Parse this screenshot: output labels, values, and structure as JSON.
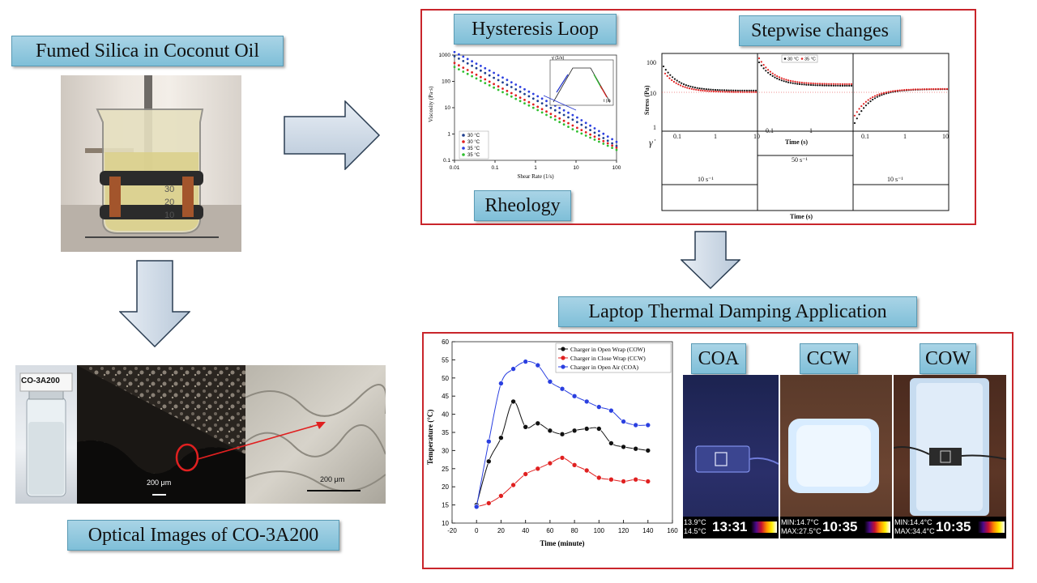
{
  "labels": {
    "fumed_silica": "Fumed Silica in Coconut Oil",
    "optical_images": "Optical Images of CO-3A200",
    "hysteresis": "Hysteresis Loop",
    "stepwise": "Stepwise changes",
    "rheology": "Rheology",
    "laptop_app": "Laptop Thermal Damping Application"
  },
  "vial_label": "CO-3A200",
  "scale_bars": {
    "left": "200 μm",
    "right": "200 μm"
  },
  "beaker_marks": [
    "30",
    "20",
    "10"
  ],
  "hysteresis_inset": {
    "ylabel": "γ̇ (1/s)",
    "xlabel": "t (s)"
  },
  "stepwise_chart": {
    "ylabel": "Stress (Pa)",
    "xlabel": "Time (s)",
    "bottom_xlabel": "Time (s)",
    "gamma_symbol": "γ̇",
    "yticks": [
      "100",
      "10",
      "1"
    ],
    "xticks": [
      "0.1",
      "1",
      "10"
    ],
    "step_rates": [
      "10 s⁻¹",
      "50 s⁻¹",
      "10 s⁻¹"
    ]
  },
  "temperature_chart_text": {
    "ylabel": "Temperature (°C)",
    "xlabel": "Time (minute)"
  },
  "thermal": {
    "titles": [
      "COA",
      "CCW",
      "COW"
    ],
    "readouts": [
      {
        "minmax1": "13.9°C",
        "minmax2": "14.5°C",
        "time": "13:31"
      },
      {
        "minmax1": "MIN:14.7°C",
        "minmax2": "MAX:27.5°C",
        "time": "10:35"
      },
      {
        "minmax1": "MIN:14.4°C",
        "minmax2": "MAX:34.4°C",
        "time": "10:35"
      }
    ]
  },
  "colors": {
    "frame": "#c9252b",
    "label_fill": "#8cc6dd",
    "arrow": "#c8d6e4"
  },
  "chart_data": [
    {
      "type": "line",
      "title": "",
      "xlabel": "Shear Rate (1/s)",
      "ylabel": "Viscosity (Pa·s)",
      "log_x": true,
      "log_y": true,
      "xlim": [
        0.01,
        100
      ],
      "ylim": [
        0.1,
        1000
      ],
      "xticks": [
        "0.01",
        "0.1",
        "1",
        "10",
        "100"
      ],
      "yticks": [
        "1000",
        "100",
        "10",
        "1",
        "0.1"
      ],
      "legend_position": "bottom-left",
      "series": [
        {
          "name": "30 °C",
          "color": "#1f3f8f",
          "x": [
            0.01,
            0.1,
            1,
            10,
            100
          ],
          "y": [
            900,
            130,
            20,
            3,
            0.35
          ]
        },
        {
          "name": "30 °C",
          "color": "#e02020",
          "x": [
            0.01,
            0.1,
            1,
            10,
            100
          ],
          "y": [
            500,
            75,
            12,
            1.8,
            0.3
          ]
        },
        {
          "name": "35 °C",
          "color": "#2c3fe0",
          "x": [
            0.01,
            0.1,
            1,
            10,
            100
          ],
          "y": [
            1300,
            200,
            30,
            4.5,
            0.5
          ]
        },
        {
          "name": "35 °C",
          "color": "#2fbf2f",
          "x": [
            0.01,
            0.1,
            1,
            10,
            100
          ],
          "y": [
            350,
            55,
            9,
            1.3,
            0.25
          ]
        }
      ]
    },
    {
      "type": "scatter",
      "title": "",
      "xlabel": "Time (minute)",
      "ylabel": "Temperature (°C)",
      "xlim": [
        -20,
        160
      ],
      "ylim": [
        10,
        60
      ],
      "xticks": [
        "-20",
        "0",
        "20",
        "40",
        "60",
        "80",
        "100",
        "120",
        "140",
        "160"
      ],
      "yticks": [
        "60",
        "55",
        "50",
        "45",
        "40",
        "35",
        "30",
        "25",
        "20",
        "15",
        "10"
      ],
      "legend_position": "top-right",
      "x": [
        0,
        10,
        20,
        30,
        40,
        50,
        60,
        70,
        80,
        90,
        100,
        110,
        120,
        130,
        140
      ],
      "series": [
        {
          "name": "Charger in Open Wrap (COW)",
          "color": "#111111",
          "values": [
            15,
            27,
            33.5,
            43.5,
            36.5,
            37.5,
            35.5,
            34.5,
            35.5,
            36,
            36,
            32,
            31,
            30.5,
            30
          ]
        },
        {
          "name": "Charger in Close Wrap (CCW)",
          "color": "#e02020",
          "values": [
            14.5,
            15.5,
            17.5,
            20.5,
            23.5,
            25,
            26.5,
            28,
            26,
            24.5,
            22.5,
            22,
            21.5,
            22,
            21.5
          ]
        },
        {
          "name": "Charger in Open Air (COA)",
          "color": "#2a3fe0",
          "values": [
            14.5,
            32.5,
            48.5,
            52.5,
            54.5,
            53.5,
            49,
            47,
            45,
            43.5,
            42,
            41,
            38,
            37,
            37
          ]
        }
      ]
    }
  ]
}
